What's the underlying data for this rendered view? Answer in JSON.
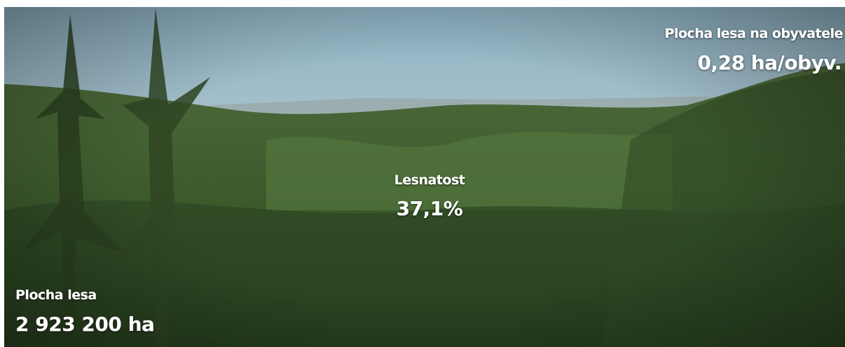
{
  "stats": [
    {
      "label": "Plocha lesa na obyvatele",
      "value": "0,28 ha/obyv."
    },
    {
      "label": "Lesnatost",
      "value": "37,1%"
    },
    {
      "label": "Plocha lesa",
      "value": "2 923 200 ha"
    }
  ]
}
